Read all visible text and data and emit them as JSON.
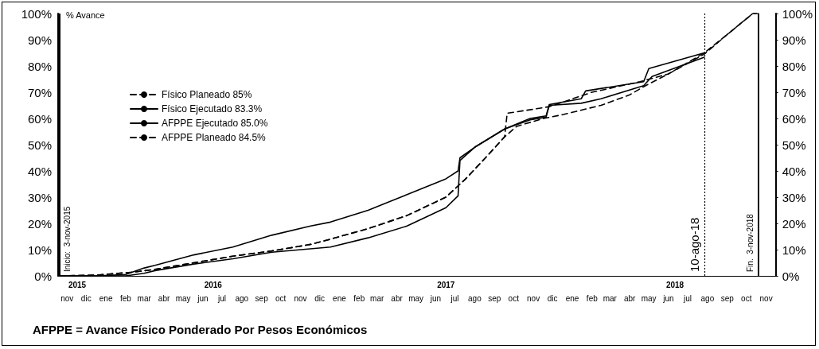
{
  "chart_data": {
    "type": "line",
    "ylabel": "% Avance",
    "annotations": [
      "AFPPE = Avance Físico Ponderado Por Pesos Económicos"
    ],
    "legend": "top left",
    "grid": false,
    "xlim": [
      "2015-11-01",
      "2018-11-30"
    ],
    "xticks": [
      {
        "value": "2015-11-15",
        "label": "nov"
      },
      {
        "value": "2015-12-15",
        "label": "dic"
      },
      {
        "value": "2016-01-15",
        "label": "ene"
      },
      {
        "value": "2016-02-15",
        "label": "feb"
      },
      {
        "value": "2016-03-15",
        "label": "mar"
      },
      {
        "value": "2016-04-15",
        "label": "abr"
      },
      {
        "value": "2016-05-15",
        "label": "may"
      },
      {
        "value": "2016-06-15",
        "label": "jun"
      },
      {
        "value": "2016-07-15",
        "label": "jul"
      },
      {
        "value": "2016-08-15",
        "label": "ago"
      },
      {
        "value": "2016-09-15",
        "label": "sep"
      },
      {
        "value": "2016-10-15",
        "label": "oct"
      },
      {
        "value": "2016-11-15",
        "label": "nov"
      },
      {
        "value": "2016-12-15",
        "label": "dic"
      },
      {
        "value": "2017-01-15",
        "label": "ene"
      },
      {
        "value": "2017-02-15",
        "label": "feb"
      },
      {
        "value": "2017-03-15",
        "label": "mar"
      },
      {
        "value": "2017-04-15",
        "label": "abr"
      },
      {
        "value": "2017-05-15",
        "label": "may"
      },
      {
        "value": "2017-06-15",
        "label": "jun"
      },
      {
        "value": "2017-07-15",
        "label": "jul"
      },
      {
        "value": "2017-08-15",
        "label": "ago"
      },
      {
        "value": "2017-09-15",
        "label": "sep"
      },
      {
        "value": "2017-10-15",
        "label": "oct"
      },
      {
        "value": "2017-11-15",
        "label": "nov"
      },
      {
        "value": "2017-12-15",
        "label": "dic"
      },
      {
        "value": "2018-01-15",
        "label": "ene"
      },
      {
        "value": "2018-02-15",
        "label": "feb"
      },
      {
        "value": "2018-03-15",
        "label": "mar"
      },
      {
        "value": "2018-04-15",
        "label": "abr"
      },
      {
        "value": "2018-05-15",
        "label": "may"
      },
      {
        "value": "2018-06-15",
        "label": "jun"
      },
      {
        "value": "2018-07-15",
        "label": "jul"
      },
      {
        "value": "2018-08-15",
        "label": "ago"
      },
      {
        "value": "2018-09-15",
        "label": "sep"
      },
      {
        "value": "2018-10-15",
        "label": "oct"
      },
      {
        "value": "2018-11-15",
        "label": "nov"
      }
    ],
    "x2lim": [
      "2015-11-01",
      "2018-11-30"
    ],
    "x2ticks": [
      {
        "value": "2015-12-01",
        "label": "2015"
      },
      {
        "value": "2016-07-01",
        "label": "2016"
      },
      {
        "value": "2017-07-01",
        "label": "2017"
      },
      {
        "value": "2018-06-25",
        "label": "2018"
      }
    ],
    "ylim": [
      0,
      100
    ],
    "yticks": [
      {
        "value": 0,
        "label": "0%"
      },
      {
        "value": 10,
        "label": "10%"
      },
      {
        "value": 20,
        "label": "20%"
      },
      {
        "value": 30,
        "label": "30%"
      },
      {
        "value": 40,
        "label": "40%"
      },
      {
        "value": 50,
        "label": "50%"
      },
      {
        "value": 60,
        "label": "60%"
      },
      {
        "value": 70,
        "label": "70%"
      },
      {
        "value": 80,
        "label": "80%"
      },
      {
        "value": 90,
        "label": "90%"
      },
      {
        "value": 100,
        "label": "100%"
      }
    ],
    "y2lim": [
      0,
      100
    ],
    "y2ticks": [
      {
        "value": 0,
        "label": "0%"
      },
      {
        "value": 10,
        "label": "10%"
      },
      {
        "value": 20,
        "label": "20%"
      },
      {
        "value": 30,
        "label": "30%"
      },
      {
        "value": 40,
        "label": "40%"
      },
      {
        "value": 50,
        "label": "50%"
      },
      {
        "value": 60,
        "label": "60%"
      },
      {
        "value": 70,
        "label": "70%"
      },
      {
        "value": 80,
        "label": "80%"
      },
      {
        "value": 90,
        "label": "90%"
      },
      {
        "value": 100,
        "label": "100%"
      }
    ],
    "ref_lines": [
      {
        "axis": "x",
        "value": "2015-11-03",
        "label": "Inicio:  3-nov-2015",
        "color": "#000000",
        "line_style": "solid"
      },
      {
        "axis": "x",
        "value": "2018-08-10",
        "label": "10-ago-18",
        "color": "#000000",
        "line_style": "dotted"
      },
      {
        "axis": "x",
        "value": "2018-11-03",
        "label": "Fin.  3-nov-2018",
        "color": "#000000",
        "line_style": "solid"
      }
    ],
    "marker": "none",
    "series": [
      {
        "name": "Físico Planeado 85%",
        "color": "#000000",
        "line_style": "dashed",
        "x": [
          "2015-11-03",
          "2016-01-01",
          "2016-03-01",
          "2016-04-01",
          "2016-06-01",
          "2016-08-01",
          "2016-10-01",
          "2016-12-01",
          "2017-01-01",
          "2017-03-01",
          "2017-05-01",
          "2017-07-01",
          "2017-08-01",
          "2017-09-01",
          "2017-10-01",
          "2017-10-05",
          "2017-11-15",
          "2017-12-10",
          "2018-02-15",
          "2018-05-01",
          "2018-06-15",
          "2018-08-10",
          "2018-09-15",
          "2018-10-25",
          "2018-11-03"
        ],
        "values": [
          0,
          0.3,
          1.5,
          2.5,
          5,
          7.5,
          9.5,
          12,
          14,
          18,
          23,
          30,
          37,
          45,
          53,
          62,
          63.5,
          64.5,
          70,
          74,
          77,
          85,
          92,
          100,
          100
        ]
      },
      {
        "name": "Físico Ejecutado 83.3%",
        "color": "#000000",
        "line_style": "solid",
        "x": [
          "2015-11-03",
          "2016-02-15",
          "2016-03-15",
          "2016-04-01",
          "2016-06-01",
          "2016-08-01",
          "2016-10-01",
          "2017-01-01",
          "2017-03-01",
          "2017-05-01",
          "2017-07-01",
          "2017-07-20",
          "2017-07-23",
          "2017-08-15",
          "2017-10-01",
          "2017-11-10",
          "2017-12-05",
          "2017-12-10",
          "2018-01-29",
          "2018-03-01",
          "2018-05-07",
          "2018-05-20",
          "2018-08-10"
        ],
        "values": [
          0,
          0,
          1,
          2,
          4.5,
          6.5,
          9,
          11,
          14.5,
          19,
          26,
          30.5,
          44,
          49,
          56,
          59.5,
          60.5,
          65,
          65.8,
          67.5,
          72.5,
          76,
          83.3
        ]
      },
      {
        "name": "AFPPE Ejecutado 85.0%",
        "color": "#000000",
        "line_style": "solid",
        "x": [
          "2015-11-03",
          "2016-01-01",
          "2016-02-15",
          "2016-03-15",
          "2016-04-01",
          "2016-06-01",
          "2016-08-01",
          "2016-10-01",
          "2016-12-01",
          "2017-01-01",
          "2017-03-01",
          "2017-05-01",
          "2017-07-01",
          "2017-07-20",
          "2017-07-23",
          "2017-08-15",
          "2017-10-01",
          "2017-11-10",
          "2017-12-05",
          "2017-12-10",
          "2018-01-29",
          "2018-02-05",
          "2018-05-07",
          "2018-05-15",
          "2018-08-10"
        ],
        "values": [
          0,
          0,
          0.5,
          3,
          4,
          8,
          11,
          15.5,
          19,
          20.5,
          25,
          31,
          37,
          40,
          45,
          49,
          56,
          60,
          61,
          65.3,
          67.5,
          70.5,
          74,
          79,
          85
        ]
      },
      {
        "name": "AFPPE Planeado 84.5%",
        "color": "#000000",
        "line_style": "dashed",
        "x": [
          "2015-11-03",
          "2016-01-01",
          "2016-03-01",
          "2016-04-01",
          "2016-06-01",
          "2016-08-01",
          "2016-10-01",
          "2016-12-01",
          "2017-01-01",
          "2017-03-01",
          "2017-05-01",
          "2017-07-01",
          "2017-08-01",
          "2017-09-01",
          "2017-10-01",
          "2017-10-20",
          "2017-12-01",
          "2018-01-01",
          "2018-03-01",
          "2018-04-15",
          "2018-05-10",
          "2018-06-15",
          "2018-08-10",
          "2018-09-15",
          "2018-10-25",
          "2018-11-03"
        ],
        "values": [
          0,
          0.3,
          1.5,
          2.5,
          5,
          7.5,
          9.5,
          12,
          14,
          18,
          23,
          30,
          37,
          45,
          53,
          57,
          60,
          61.5,
          65,
          69,
          72.5,
          77,
          84.5,
          92,
          100,
          100
        ]
      }
    ]
  }
}
